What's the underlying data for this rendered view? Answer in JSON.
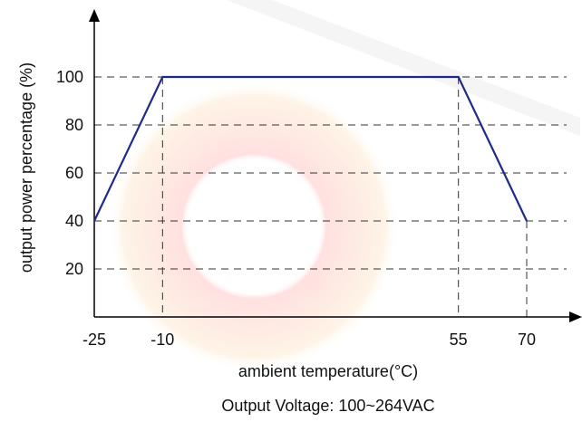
{
  "chart_data": {
    "type": "line",
    "x_label": "ambient temperature(°C)",
    "y_label": "output power percentage (%)",
    "subtitle": "Output Voltage: 100~264VAC",
    "x": [
      -25,
      -10,
      55,
      70
    ],
    "series": [
      {
        "color": "#1f2a8a",
        "values": [
          40,
          100,
          100,
          40
        ]
      }
    ],
    "xlim": [
      -25,
      70
    ],
    "xticks": [
      -25,
      -10,
      55,
      70
    ],
    "ylim": [
      0,
      100
    ],
    "yticks": [
      20,
      40,
      60,
      80,
      100
    ],
    "grid": true
  }
}
